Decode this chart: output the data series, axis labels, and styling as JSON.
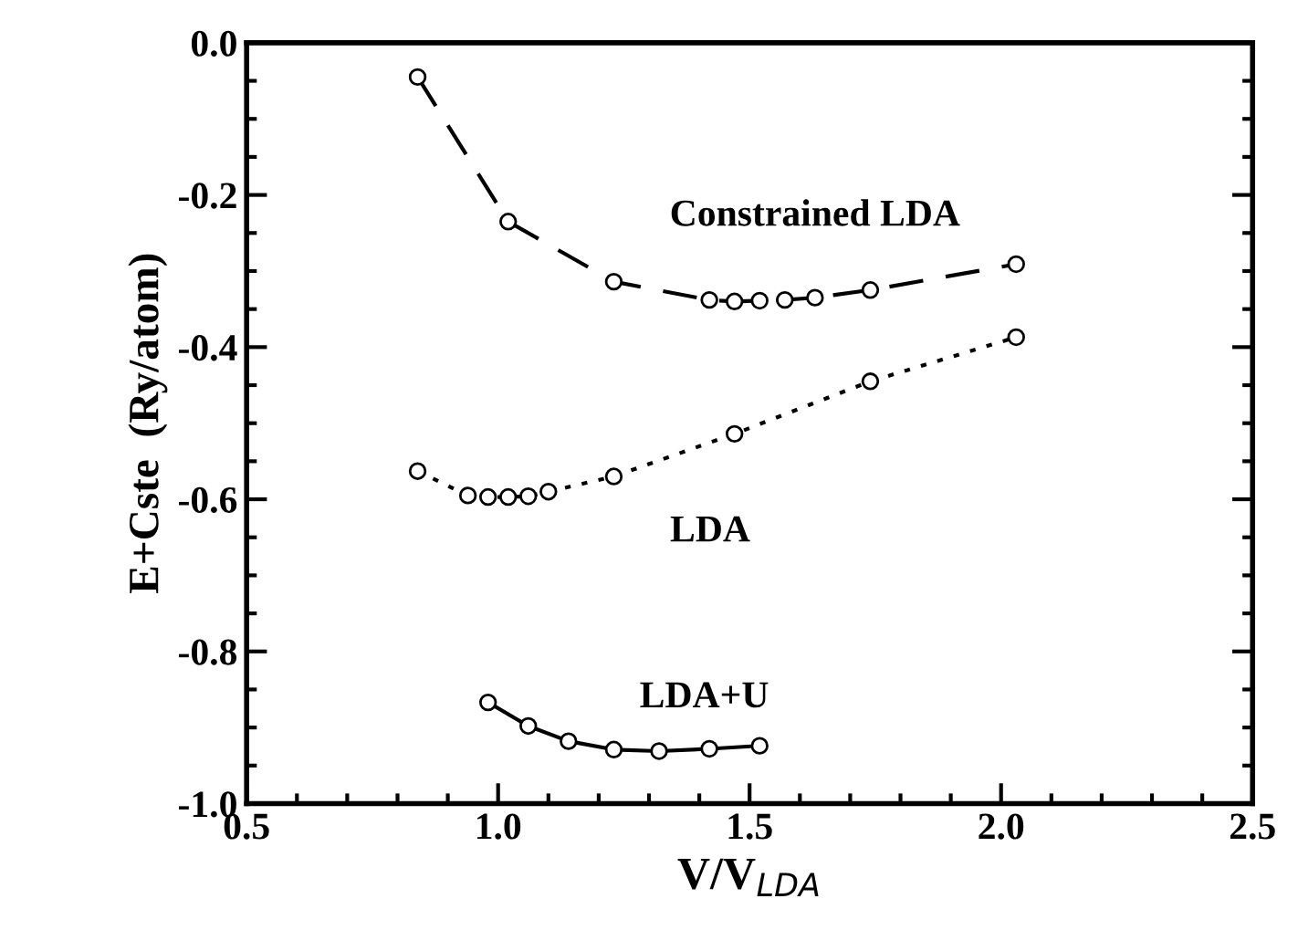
{
  "chart_data": {
    "type": "line",
    "xlabel": "V/V$_{LDA}$",
    "ylabel": "E+Cste  (Ry/atom)",
    "xlim": [
      0.5,
      2.5
    ],
    "ylim": [
      -1.0,
      0.0
    ],
    "xticks": [
      {
        "value": 0.5,
        "label": "0.5"
      },
      {
        "value": 1.0,
        "label": "1.0"
      },
      {
        "value": 1.5,
        "label": "1.5"
      },
      {
        "value": 2.0,
        "label": "2.0"
      },
      {
        "value": 2.5,
        "label": "2.5"
      }
    ],
    "yticks": [
      {
        "value": 0.0,
        "label": "0.0"
      },
      {
        "value": -0.2,
        "label": "-0.2"
      },
      {
        "value": -0.4,
        "label": "-0.4"
      },
      {
        "value": -0.6,
        "label": "-0.6"
      },
      {
        "value": -0.8,
        "label": "-0.8"
      },
      {
        "value": -1.0,
        "label": "-1.0"
      }
    ],
    "marker": "circle",
    "grid": false,
    "legend": false,
    "series": [
      {
        "name": "Constrained LDA",
        "color": "#000000",
        "line_style": "dashed",
        "x": [
          0.84,
          1.02,
          1.23,
          1.42,
          1.47,
          1.52,
          1.57,
          1.63,
          1.74,
          2.03
        ],
        "values": [
          -0.045,
          -0.235,
          -0.314,
          -0.338,
          -0.34,
          -0.339,
          -0.338,
          -0.335,
          -0.325,
          -0.291
        ]
      },
      {
        "name": "LDA",
        "color": "#000000",
        "line_style": "dotted",
        "x": [
          0.84,
          0.94,
          0.98,
          1.02,
          1.06,
          1.1,
          1.23,
          1.47,
          1.74,
          2.03
        ],
        "values": [
          -0.563,
          -0.595,
          -0.597,
          -0.597,
          -0.596,
          -0.59,
          -0.57,
          -0.514,
          -0.445,
          -0.387
        ]
      },
      {
        "name": "LDA+U",
        "color": "#000000",
        "line_style": "solid",
        "x": [
          0.98,
          1.06,
          1.14,
          1.23,
          1.32,
          1.42,
          1.52
        ],
        "values": [
          -0.867,
          -0.898,
          -0.918,
          -0.929,
          -0.931,
          -0.928,
          -0.924
        ]
      }
    ]
  }
}
